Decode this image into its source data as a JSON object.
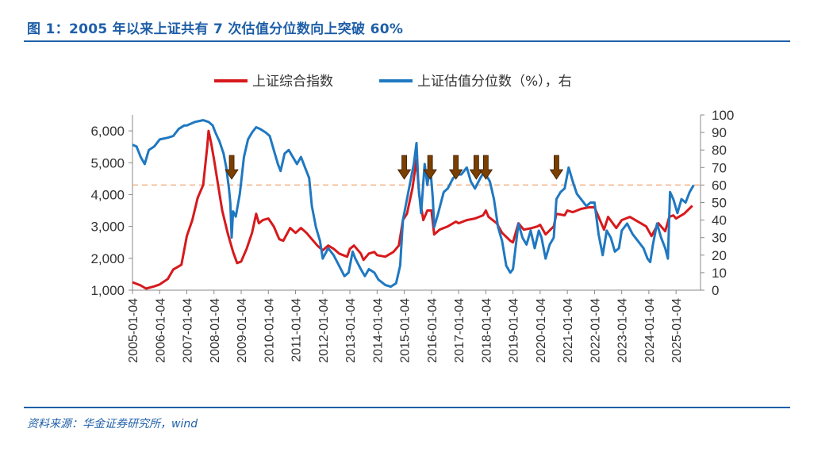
{
  "header": {
    "title": "图 1：2005 年以来上证共有 7 次估值分位数向上突破 60%"
  },
  "footer": {
    "source": "资料来源：华金证券研究所，wind"
  },
  "colors": {
    "series_index": "#d7191c",
    "series_valuation": "#1f78c1",
    "threshold": "#f4b183",
    "arrow": "#7b3f00",
    "accent": "#1f5fa8"
  },
  "chart_data": {
    "type": "line",
    "legend": [
      {
        "name": "上证综合指数",
        "color": "#d7191c"
      },
      {
        "name": "上证估值分位数（%），右",
        "color": "#1f78c1"
      }
    ],
    "legend_placement": "top-center",
    "x_ticks": [
      "2005-01-04",
      "2006-01-04",
      "2007-01-04",
      "2008-01-04",
      "2009-01-04",
      "2010-01-04",
      "2011-01-04",
      "2012-01-04",
      "2013-01-04",
      "2014-01-04",
      "2015-01-04",
      "2016-01-04",
      "2017-01-04",
      "2018-01-04",
      "2019-01-04",
      "2020-01-04",
      "2021-01-04",
      "2022-01-04",
      "2023-01-04",
      "2024-01-04",
      "2025-01-04"
    ],
    "y_left": {
      "min": 1000,
      "max": 6500,
      "ticks": [
        1000,
        2000,
        3000,
        4000,
        5000,
        6000
      ],
      "tick_labels": [
        "1,000",
        "2,000",
        "3,000",
        "4,000",
        "5,000",
        "6,000"
      ]
    },
    "y_right": {
      "min": 0,
      "max": 100,
      "ticks": [
        0,
        10,
        20,
        30,
        40,
        50,
        60,
        70,
        80,
        90,
        100
      ]
    },
    "threshold_right": 60,
    "grid": false,
    "series": [
      {
        "name": "上证综合指数",
        "axis": "left",
        "points": [
          [
            2005.0,
            1250
          ],
          [
            2005.3,
            1150
          ],
          [
            2005.5,
            1050
          ],
          [
            2005.8,
            1120
          ],
          [
            2006.0,
            1180
          ],
          [
            2006.3,
            1350
          ],
          [
            2006.5,
            1650
          ],
          [
            2006.8,
            1800
          ],
          [
            2007.0,
            2700
          ],
          [
            2007.2,
            3200
          ],
          [
            2007.4,
            3900
          ],
          [
            2007.6,
            4300
          ],
          [
            2007.75,
            5500
          ],
          [
            2007.8,
            6000
          ],
          [
            2007.9,
            5600
          ],
          [
            2008.0,
            5100
          ],
          [
            2008.15,
            4300
          ],
          [
            2008.3,
            3500
          ],
          [
            2008.5,
            2800
          ],
          [
            2008.7,
            2200
          ],
          [
            2008.85,
            1850
          ],
          [
            2009.0,
            1900
          ],
          [
            2009.2,
            2300
          ],
          [
            2009.4,
            2800
          ],
          [
            2009.55,
            3400
          ],
          [
            2009.65,
            3100
          ],
          [
            2009.8,
            3200
          ],
          [
            2010.0,
            3250
          ],
          [
            2010.2,
            3000
          ],
          [
            2010.4,
            2600
          ],
          [
            2010.55,
            2550
          ],
          [
            2010.8,
            2950
          ],
          [
            2011.0,
            2800
          ],
          [
            2011.2,
            2950
          ],
          [
            2011.4,
            2800
          ],
          [
            2011.6,
            2600
          ],
          [
            2011.8,
            2400
          ],
          [
            2012.0,
            2250
          ],
          [
            2012.2,
            2400
          ],
          [
            2012.4,
            2300
          ],
          [
            2012.6,
            2150
          ],
          [
            2012.9,
            2050
          ],
          [
            2013.0,
            2300
          ],
          [
            2013.15,
            2400
          ],
          [
            2013.4,
            2150
          ],
          [
            2013.5,
            1950
          ],
          [
            2013.7,
            2150
          ],
          [
            2013.9,
            2200
          ],
          [
            2014.0,
            2100
          ],
          [
            2014.3,
            2050
          ],
          [
            2014.6,
            2200
          ],
          [
            2014.8,
            2400
          ],
          [
            2014.95,
            3200
          ],
          [
            2015.1,
            3400
          ],
          [
            2015.3,
            4200
          ],
          [
            2015.45,
            5100
          ],
          [
            2015.55,
            4000
          ],
          [
            2015.7,
            3200
          ],
          [
            2015.85,
            3500
          ],
          [
            2016.0,
            3500
          ],
          [
            2016.1,
            2750
          ],
          [
            2016.3,
            2900
          ],
          [
            2016.6,
            3000
          ],
          [
            2016.9,
            3150
          ],
          [
            2017.0,
            3100
          ],
          [
            2017.3,
            3200
          ],
          [
            2017.6,
            3250
          ],
          [
            2017.9,
            3350
          ],
          [
            2018.0,
            3500
          ],
          [
            2018.1,
            3300
          ],
          [
            2018.4,
            3100
          ],
          [
            2018.6,
            2800
          ],
          [
            2018.9,
            2550
          ],
          [
            2019.0,
            2500
          ],
          [
            2019.2,
            3100
          ],
          [
            2019.4,
            2900
          ],
          [
            2019.7,
            2950
          ],
          [
            2019.9,
            3000
          ],
          [
            2020.0,
            3050
          ],
          [
            2020.2,
            2750
          ],
          [
            2020.5,
            3000
          ],
          [
            2020.6,
            3400
          ],
          [
            2020.9,
            3350
          ],
          [
            2021.0,
            3500
          ],
          [
            2021.2,
            3450
          ],
          [
            2021.5,
            3550
          ],
          [
            2021.8,
            3600
          ],
          [
            2022.0,
            3600
          ],
          [
            2022.2,
            3200
          ],
          [
            2022.35,
            2900
          ],
          [
            2022.5,
            3300
          ],
          [
            2022.8,
            2950
          ],
          [
            2023.0,
            3200
          ],
          [
            2023.3,
            3300
          ],
          [
            2023.6,
            3150
          ],
          [
            2023.9,
            3000
          ],
          [
            2024.0,
            2850
          ],
          [
            2024.1,
            2700
          ],
          [
            2024.35,
            3100
          ],
          [
            2024.6,
            2850
          ],
          [
            2024.75,
            3300
          ],
          [
            2024.9,
            3350
          ],
          [
            2025.0,
            3250
          ],
          [
            2025.3,
            3400
          ],
          [
            2025.6,
            3650
          ]
        ]
      },
      {
        "name": "上证估值分位数（%），右",
        "axis": "right",
        "points": [
          [
            2005.0,
            83
          ],
          [
            2005.15,
            82
          ],
          [
            2005.3,
            76
          ],
          [
            2005.45,
            72
          ],
          [
            2005.6,
            80
          ],
          [
            2005.8,
            82
          ],
          [
            2006.0,
            86
          ],
          [
            2006.3,
            87
          ],
          [
            2006.5,
            88
          ],
          [
            2006.7,
            92
          ],
          [
            2006.9,
            94
          ],
          [
            2007.0,
            94
          ],
          [
            2007.3,
            96
          ],
          [
            2007.6,
            97
          ],
          [
            2007.8,
            96
          ],
          [
            2007.95,
            94
          ],
          [
            2008.05,
            90
          ],
          [
            2008.2,
            85
          ],
          [
            2008.35,
            78
          ],
          [
            2008.45,
            70
          ],
          [
            2008.55,
            58
          ],
          [
            2008.6,
            50
          ],
          [
            2008.65,
            30
          ],
          [
            2008.7,
            45
          ],
          [
            2008.8,
            42
          ],
          [
            2008.95,
            55
          ],
          [
            2009.1,
            76
          ],
          [
            2009.25,
            86
          ],
          [
            2009.4,
            90
          ],
          [
            2009.55,
            93
          ],
          [
            2009.7,
            92
          ],
          [
            2009.9,
            90
          ],
          [
            2010.05,
            88
          ],
          [
            2010.2,
            80
          ],
          [
            2010.35,
            72
          ],
          [
            2010.45,
            68
          ],
          [
            2010.6,
            78
          ],
          [
            2010.75,
            80
          ],
          [
            2010.9,
            76
          ],
          [
            2011.05,
            72
          ],
          [
            2011.2,
            76
          ],
          [
            2011.35,
            70
          ],
          [
            2011.5,
            64
          ],
          [
            2011.6,
            48
          ],
          [
            2011.75,
            36
          ],
          [
            2011.9,
            28
          ],
          [
            2012.0,
            18
          ],
          [
            2012.2,
            24
          ],
          [
            2012.4,
            20
          ],
          [
            2012.6,
            14
          ],
          [
            2012.8,
            8
          ],
          [
            2012.95,
            10
          ],
          [
            2013.1,
            22
          ],
          [
            2013.2,
            18
          ],
          [
            2013.4,
            12
          ],
          [
            2013.55,
            8
          ],
          [
            2013.7,
            12
          ],
          [
            2013.9,
            10
          ],
          [
            2014.05,
            6
          ],
          [
            2014.3,
            3
          ],
          [
            2014.5,
            2
          ],
          [
            2014.7,
            4
          ],
          [
            2014.85,
            14
          ],
          [
            2014.95,
            40
          ],
          [
            2015.05,
            48
          ],
          [
            2015.2,
            60
          ],
          [
            2015.35,
            72
          ],
          [
            2015.45,
            84
          ],
          [
            2015.52,
            60
          ],
          [
            2015.62,
            44
          ],
          [
            2015.75,
            72
          ],
          [
            2015.85,
            60
          ],
          [
            2015.95,
            72
          ],
          [
            2016.05,
            52
          ],
          [
            2016.1,
            36
          ],
          [
            2016.25,
            44
          ],
          [
            2016.45,
            56
          ],
          [
            2016.6,
            58
          ],
          [
            2016.8,
            64
          ],
          [
            2016.95,
            66
          ],
          [
            2017.1,
            66
          ],
          [
            2017.3,
            70
          ],
          [
            2017.45,
            62
          ],
          [
            2017.6,
            58
          ],
          [
            2017.8,
            64
          ],
          [
            2017.95,
            68
          ],
          [
            2018.0,
            66
          ],
          [
            2018.15,
            62
          ],
          [
            2018.3,
            52
          ],
          [
            2018.45,
            36
          ],
          [
            2018.6,
            28
          ],
          [
            2018.75,
            14
          ],
          [
            2018.9,
            10
          ],
          [
            2019.0,
            12
          ],
          [
            2019.2,
            38
          ],
          [
            2019.35,
            30
          ],
          [
            2019.5,
            26
          ],
          [
            2019.65,
            34
          ],
          [
            2019.8,
            24
          ],
          [
            2019.95,
            34
          ],
          [
            2020.05,
            30
          ],
          [
            2020.2,
            18
          ],
          [
            2020.35,
            26
          ],
          [
            2020.5,
            30
          ],
          [
            2020.6,
            52
          ],
          [
            2020.75,
            56
          ],
          [
            2020.9,
            58
          ],
          [
            2021.05,
            70
          ],
          [
            2021.2,
            62
          ],
          [
            2021.35,
            55
          ],
          [
            2021.5,
            52
          ],
          [
            2021.7,
            48
          ],
          [
            2021.85,
            50
          ],
          [
            2022.0,
            50
          ],
          [
            2022.15,
            32
          ],
          [
            2022.3,
            20
          ],
          [
            2022.45,
            34
          ],
          [
            2022.6,
            30
          ],
          [
            2022.75,
            22
          ],
          [
            2022.9,
            24
          ],
          [
            2023.0,
            34
          ],
          [
            2023.2,
            38
          ],
          [
            2023.4,
            32
          ],
          [
            2023.6,
            28
          ],
          [
            2023.8,
            24
          ],
          [
            2023.95,
            18
          ],
          [
            2024.05,
            16
          ],
          [
            2024.15,
            26
          ],
          [
            2024.3,
            38
          ],
          [
            2024.45,
            30
          ],
          [
            2024.6,
            24
          ],
          [
            2024.7,
            18
          ],
          [
            2024.78,
            56
          ],
          [
            2024.9,
            52
          ],
          [
            2025.05,
            44
          ],
          [
            2025.2,
            52
          ],
          [
            2025.35,
            50
          ],
          [
            2025.5,
            56
          ],
          [
            2025.65,
            60
          ]
        ]
      }
    ],
    "arrows_x": [
      2008.65,
      2015.0,
      2015.95,
      2016.9,
      2017.65,
      2018.0,
      2020.6
    ]
  }
}
